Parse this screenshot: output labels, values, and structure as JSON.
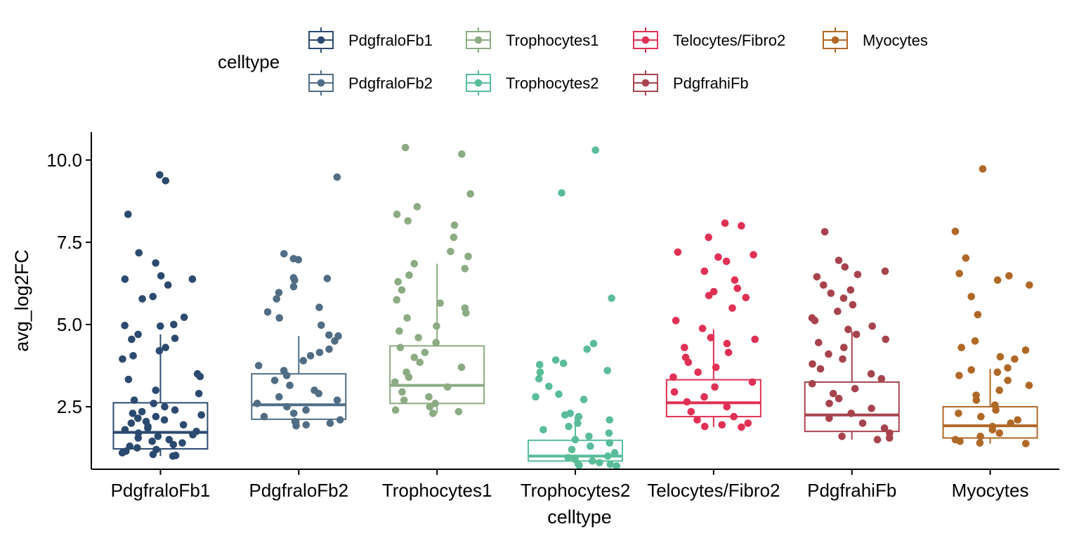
{
  "chart_data": {
    "type": "box",
    "overlay": "jittered points",
    "xlabel": "celltype",
    "ylabel": "avg_log2FC",
    "ylim": [
      0.6,
      10.85
    ],
    "yticks": [
      2.5,
      5.0,
      7.5,
      10.0
    ],
    "ytick_labels": [
      "2.5",
      "5.0",
      "7.5",
      "10.0"
    ],
    "grid": false,
    "legend": {
      "title": "celltype",
      "placement": "top",
      "rows": [
        [
          "PdgfraloFb1",
          "Trophocytes1",
          "Telocytes/Fibro2",
          "Myocytes"
        ],
        [
          "PdgfraloFb2",
          "Trophocytes2",
          "PdgfrahiFb"
        ]
      ]
    },
    "categories": [
      "PdgfraloFb1",
      "PdgfraloFb2",
      "Trophocytes1",
      "Trophocytes2",
      "Telocytes/Fibro2",
      "PdgfrahiFb",
      "Myocytes"
    ],
    "series": [
      {
        "name": "PdgfraloFb1",
        "color": "#2B4A6F",
        "box": {
          "q1": 1.22,
          "median": 1.72,
          "q3": 2.62,
          "whisker_low": 1.0,
          "whisker_high": 4.7
        },
        "points": [
          9.55,
          9.37,
          8.35,
          7.18,
          6.87,
          6.48,
          6.38,
          6.38,
          6.2,
          5.85,
          5.78,
          5.22,
          5.0,
          4.97,
          4.95,
          4.7,
          4.58,
          4.55,
          4.3,
          4.2,
          4.05,
          3.95,
          3.5,
          3.42,
          3.33,
          3.0,
          2.9,
          2.7,
          2.6,
          2.5,
          2.4,
          2.35,
          2.3,
          2.25,
          2.2,
          2.15,
          2.1,
          2.05,
          2.0,
          1.95,
          1.9,
          1.85,
          1.8,
          1.75,
          1.7,
          1.65,
          1.6,
          1.55,
          1.5,
          1.45,
          1.4,
          1.35,
          1.3,
          1.25,
          1.2,
          1.15,
          1.1,
          1.05,
          1.02,
          1.0
        ]
      },
      {
        "name": "PdgfraloFb2",
        "color": "#4F6D85",
        "box": {
          "q1": 2.12,
          "median": 2.56,
          "q3": 3.5,
          "whisker_low": 1.92,
          "whisker_high": 4.65
        },
        "points": [
          9.48,
          7.15,
          7.0,
          6.97,
          6.42,
          6.4,
          6.35,
          6.15,
          5.97,
          5.78,
          5.52,
          5.38,
          5.2,
          4.98,
          4.68,
          4.65,
          4.5,
          4.25,
          4.15,
          4.05,
          3.9,
          3.75,
          3.6,
          3.45,
          3.3,
          3.15,
          3.0,
          2.9,
          2.8,
          2.7,
          2.6,
          2.5,
          2.4,
          2.3,
          2.2,
          2.1,
          2.05,
          2.0,
          1.95,
          1.92
        ]
      },
      {
        "name": "Trophocytes1",
        "color": "#8BAB82",
        "box": {
          "q1": 2.6,
          "median": 3.15,
          "q3": 4.35,
          "whisker_low": 2.3,
          "whisker_high": 6.85
        },
        "points": [
          10.38,
          10.18,
          8.97,
          8.58,
          8.35,
          8.15,
          8.02,
          7.65,
          7.22,
          7.07,
          6.85,
          6.7,
          6.5,
          6.3,
          6.05,
          5.75,
          5.65,
          5.5,
          5.35,
          5.2,
          4.95,
          4.8,
          4.6,
          4.45,
          4.3,
          4.15,
          4.0,
          3.85,
          3.7,
          3.55,
          3.4,
          3.25,
          3.1,
          2.95,
          2.8,
          2.7,
          2.6,
          2.5,
          2.4,
          2.35,
          2.3
        ]
      },
      {
        "name": "Trophocytes2",
        "color": "#58BD98",
        "box": {
          "q1": 0.85,
          "median": 1.0,
          "q3": 1.48,
          "whisker_low": 0.7,
          "whisker_high": 2.2
        },
        "points": [
          10.3,
          9.0,
          5.8,
          4.42,
          4.25,
          3.92,
          3.82,
          3.78,
          3.6,
          3.55,
          3.35,
          3.12,
          2.88,
          2.8,
          2.72,
          2.3,
          2.25,
          2.2,
          2.1,
          2.0,
          1.9,
          1.8,
          1.7,
          1.6,
          1.5,
          1.4,
          1.3,
          1.2,
          1.1,
          1.0,
          0.95,
          0.9,
          0.85,
          0.8,
          0.75,
          0.72,
          0.7
        ]
      },
      {
        "name": "Telocytes/Fibro2",
        "color": "#E03054",
        "box": {
          "q1": 2.2,
          "median": 2.62,
          "q3": 3.32,
          "whisker_low": 1.88,
          "whisker_high": 4.85
        },
        "points": [
          8.08,
          8.0,
          7.65,
          7.2,
          7.12,
          7.05,
          6.92,
          6.62,
          6.35,
          6.1,
          6.0,
          5.88,
          5.82,
          5.5,
          5.12,
          4.88,
          4.6,
          4.55,
          4.42,
          4.3,
          4.15,
          4.0,
          3.85,
          3.7,
          3.55,
          3.4,
          3.25,
          3.1,
          2.95,
          2.8,
          2.65,
          2.5,
          2.35,
          2.2,
          2.1,
          2.0,
          1.95,
          1.9,
          1.88
        ]
      },
      {
        "name": "PdgfrahiFb",
        "color": "#A7434D",
        "box": {
          "q1": 1.75,
          "median": 2.25,
          "q3": 3.25,
          "whisker_low": 1.5,
          "whisker_high": 4.8
        },
        "points": [
          7.82,
          6.95,
          6.75,
          6.62,
          6.52,
          6.45,
          6.2,
          6.05,
          5.95,
          5.8,
          5.6,
          5.4,
          5.2,
          5.12,
          4.95,
          4.85,
          4.7,
          4.55,
          4.45,
          4.3,
          4.1,
          3.95,
          3.8,
          3.65,
          3.5,
          3.35,
          3.2,
          3.05,
          2.9,
          2.75,
          2.6,
          2.45,
          2.3,
          2.15,
          2.0,
          1.85,
          1.7,
          1.6,
          1.55,
          1.5
        ]
      },
      {
        "name": "Myocytes",
        "color": "#B06826",
        "box": {
          "q1": 1.55,
          "median": 1.92,
          "q3": 2.5,
          "whisker_low": 1.38,
          "whisker_high": 3.65
        },
        "points": [
          9.73,
          7.83,
          7.02,
          6.55,
          6.48,
          6.35,
          6.2,
          5.85,
          5.3,
          4.5,
          4.3,
          4.22,
          4.02,
          3.95,
          3.68,
          3.62,
          3.55,
          3.45,
          3.3,
          3.15,
          3.0,
          2.85,
          2.7,
          2.55,
          2.4,
          2.3,
          2.2,
          2.1,
          2.0,
          1.9,
          1.8,
          1.7,
          1.6,
          1.5,
          1.45,
          1.4,
          1.38
        ]
      }
    ]
  }
}
